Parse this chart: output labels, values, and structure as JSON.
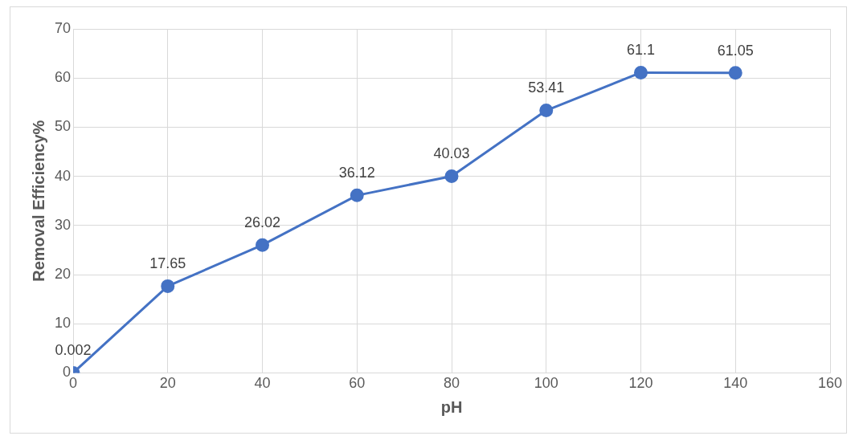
{
  "chart_data": {
    "type": "line",
    "xlabel": "pH",
    "ylabel": "Removal Efficiency%",
    "x": [
      0,
      20,
      40,
      60,
      80,
      100,
      120,
      140
    ],
    "values": [
      0.002,
      17.65,
      26.02,
      36.12,
      40.03,
      53.41,
      61.1,
      61.05
    ],
    "color": "#4472c4",
    "xlim": [
      0,
      160
    ],
    "xticks": [
      0,
      20,
      40,
      60,
      80,
      100,
      120,
      140,
      160
    ],
    "ylim": [
      0,
      70
    ],
    "yticks": [
      0,
      10,
      20,
      30,
      40,
      50,
      60,
      70
    ],
    "grid": true,
    "marker": "circle",
    "line_style": "solid",
    "data_labels": true,
    "legend": false
  }
}
